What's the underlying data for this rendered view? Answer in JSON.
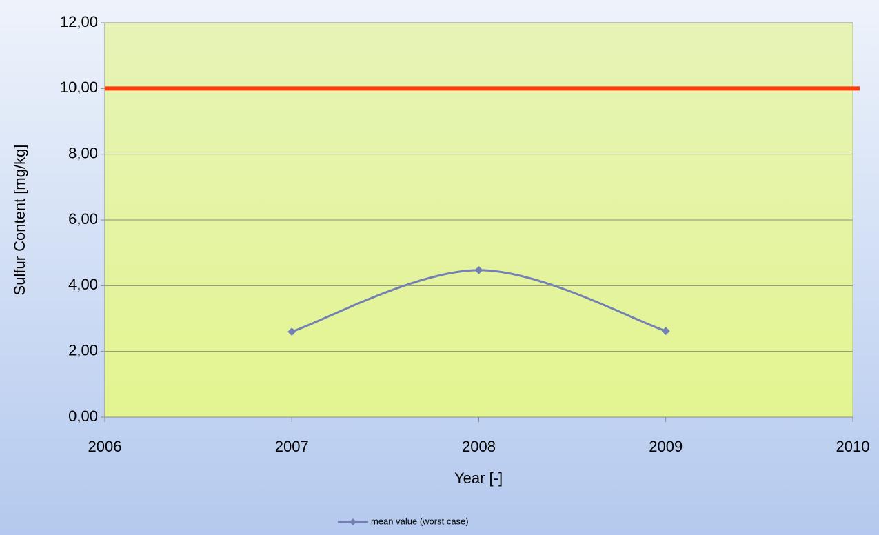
{
  "chart_data": {
    "type": "line",
    "x_label": "Year [-]",
    "y_label": "Sulfur Content [mg/kg]",
    "series": [
      {
        "name": "mean value (worst case)",
        "color": "#7480b4",
        "x": [
          2007,
          2008,
          2009
        ],
        "values": [
          2.6,
          4.47,
          2.62
        ]
      }
    ],
    "reference_lines": [
      {
        "value": 10,
        "color": "#ff3a0a"
      }
    ],
    "smooth": true,
    "xlim": [
      2006,
      2010
    ],
    "xticks": [
      2006,
      2007,
      2008,
      2009,
      2010
    ],
    "ylim": [
      0,
      12
    ],
    "yticks": [
      {
        "value": 0,
        "label": "0,00"
      },
      {
        "value": 2,
        "label": "2,00"
      },
      {
        "value": 4,
        "label": "4,00"
      },
      {
        "value": 6,
        "label": "6,00"
      },
      {
        "value": 8,
        "label": "8,00"
      },
      {
        "value": 10,
        "label": "10,00"
      },
      {
        "value": 12,
        "label": "12,00"
      }
    ],
    "grid": true,
    "legend": "bottom"
  }
}
